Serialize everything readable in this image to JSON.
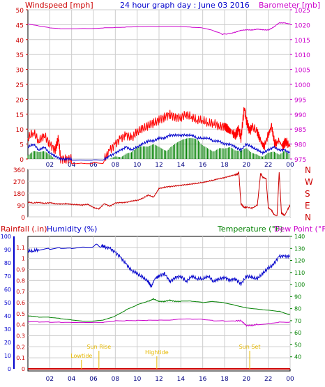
{
  "title": "24 hour graph day : June 03 2016",
  "colors": {
    "wind": "#ff0000",
    "gust": "#ff0000",
    "avgwind": "#0000cc",
    "wind_fill": "#008000",
    "barometer": "#cc00cc",
    "direction": "#cc0000",
    "rain": "#cc0000",
    "humidity": "#0000cc",
    "temperature": "#008000",
    "dewpoint": "#cc00cc",
    "grid": "#cccccc",
    "axis_left": "#cc0000",
    "axis_right_top": "#cc00cc",
    "axis_right_bottom": "#008000",
    "axis_hum": "#0000cc",
    "ann": "#e6b800"
  },
  "chart_data": [
    {
      "type": "line",
      "name": "wind-barometer",
      "xlabel": "",
      "x_ticks": [
        "02",
        "04",
        "06",
        "08",
        "10",
        "12",
        "14",
        "16",
        "18",
        "20",
        "22",
        "00"
      ],
      "left_axis": {
        "label": "Windspeed [mph]",
        "ticks": [
          0,
          5,
          10,
          15,
          20,
          25,
          30,
          35,
          40,
          45,
          50
        ],
        "ylim": [
          0,
          50
        ]
      },
      "right_axis": {
        "label": "Barometer [mb]",
        "ticks": [
          975,
          980,
          985,
          990,
          995,
          1000,
          1005,
          1010,
          1015,
          1020,
          1025
        ],
        "ylim": [
          975,
          1025
        ]
      },
      "series": [
        {
          "key": "barometer",
          "axis": "right",
          "x": [
            0,
            1,
            2,
            3,
            4,
            5,
            6,
            7,
            8,
            9,
            10,
            11,
            12,
            13,
            14,
            15,
            16,
            17,
            17.8,
            18.5,
            19,
            19.5,
            20,
            20.5,
            21,
            21.5,
            22,
            22.5,
            23,
            23.5,
            24
          ],
          "values": [
            1020.2,
            1019.6,
            1019.0,
            1018.7,
            1018.7,
            1018.8,
            1018.8,
            1019.0,
            1019.1,
            1019.2,
            1019.3,
            1019.4,
            1019.3,
            1019.4,
            1019.3,
            1019.1,
            1018.9,
            1018.0,
            1016.8,
            1017.0,
            1017.5,
            1018.1,
            1018.3,
            1018.2,
            1018.5,
            1018.3,
            1018.2,
            1019.2,
            1020.6,
            1020.6,
            1020.2
          ]
        },
        {
          "key": "gust",
          "axis": "left",
          "x": [
            0,
            0.5,
            1,
            1.5,
            2,
            2.5,
            2.8,
            3,
            3.5,
            4,
            5,
            6,
            7,
            7.5,
            8,
            8.5,
            9,
            9.5,
            10,
            10.5,
            11,
            11.5,
            12,
            12.5,
            13,
            13.5,
            14,
            14.5,
            15,
            15.5,
            16,
            16.5,
            17,
            17.5,
            18,
            18.3,
            18.6,
            19,
            19.3,
            19.5,
            19.8,
            20,
            20.3,
            20.5,
            21,
            21.3,
            21.6,
            22,
            22.3,
            22.6,
            23,
            23.3,
            23.6,
            24
          ],
          "values": [
            7,
            9,
            6,
            8,
            5,
            3,
            7,
            0,
            0,
            0,
            0,
            0,
            0,
            3,
            5,
            7,
            8,
            7,
            9,
            10,
            11,
            12,
            13,
            14,
            15,
            14,
            14,
            15,
            14,
            13,
            13,
            12,
            12,
            11,
            11,
            10,
            9,
            8,
            10,
            7,
            17,
            13,
            9,
            11,
            9,
            6,
            4,
            8,
            11,
            5,
            6,
            4,
            6,
            4
          ]
        },
        {
          "key": "avgwind",
          "axis": "left",
          "x": [
            0,
            0.5,
            1,
            1.5,
            2,
            2.5,
            3,
            3.5,
            4,
            5,
            6,
            7,
            7.5,
            8,
            8.5,
            9,
            9.5,
            10,
            10.5,
            11,
            11.5,
            12,
            12.5,
            13,
            13.5,
            14,
            14.5,
            15,
            15.5,
            16,
            16.5,
            17,
            17.5,
            18,
            18.5,
            19,
            19.5,
            20,
            20.5,
            21,
            21.5,
            22,
            22.5,
            23,
            23.5,
            24
          ],
          "values": [
            4,
            5,
            3,
            4,
            2,
            1,
            0,
            0,
            0,
            0,
            0,
            0,
            1,
            2,
            3,
            4,
            3,
            4,
            5,
            6,
            6,
            7,
            7,
            8,
            8,
            8,
            8,
            8,
            7,
            7,
            7,
            6,
            6,
            5,
            5,
            4,
            3,
            5,
            4,
            3,
            2,
            3,
            4,
            3,
            3,
            2
          ]
        },
        {
          "key": "wind_fill",
          "axis": "left",
          "x": [
            0,
            0.5,
            1,
            1.5,
            2,
            2.5,
            3,
            3.5,
            4,
            5,
            6,
            7,
            7.5,
            8,
            8.5,
            9,
            9.5,
            10,
            10.5,
            11,
            11.5,
            12,
            12.5,
            13,
            13.5,
            14,
            14.5,
            15,
            15.5,
            16,
            16.5,
            17,
            17.5,
            18,
            18.5,
            19,
            19.5,
            20,
            20.5,
            21,
            21.5,
            22,
            22.5,
            23,
            23.5,
            24
          ],
          "values": [
            2,
            3,
            2,
            2,
            1,
            0,
            0,
            0,
            0,
            0,
            0,
            0,
            0,
            1,
            1,
            2,
            2,
            3,
            3,
            3,
            4,
            4,
            4,
            5,
            5,
            5,
            5,
            5,
            5,
            4,
            4,
            4,
            4,
            3,
            3,
            2,
            2,
            3,
            2,
            2,
            1,
            2,
            2,
            1,
            2,
            1
          ]
        }
      ]
    },
    {
      "type": "line",
      "name": "wind-direction",
      "left_ticks": [
        0,
        90,
        180,
        270,
        360
      ],
      "right_labels": [
        "N",
        "W",
        "S",
        "E",
        "N"
      ],
      "ylim": [
        0,
        360
      ],
      "x_ticks": [
        "02",
        "04",
        "06",
        "08",
        "10",
        "12",
        "14",
        "16",
        "18",
        "20",
        "22",
        "00"
      ],
      "series": [
        {
          "key": "direction",
          "x": [
            0,
            0.5,
            1,
            1.5,
            2,
            2.5,
            3,
            3.5,
            4,
            4.5,
            5,
            5.5,
            6,
            6.5,
            7,
            7.5,
            8,
            8.5,
            9,
            9.5,
            10,
            10.5,
            11,
            11.5,
            12,
            12.5,
            13,
            13.5,
            14,
            14.5,
            15,
            15.5,
            16,
            16.5,
            17,
            17.5,
            18,
            18.5,
            19,
            19.2,
            19.3,
            19.5,
            19.8,
            20,
            20.5,
            21,
            21.3,
            21.5,
            21.8,
            22,
            22.3,
            22.5,
            22.8,
            23,
            23.2,
            23.5,
            23.8,
            24
          ],
          "values": [
            112,
            105,
            110,
            102,
            108,
            100,
            98,
            100,
            95,
            92,
            90,
            95,
            70,
            60,
            100,
            80,
            105,
            108,
            110,
            120,
            125,
            140,
            165,
            150,
            215,
            225,
            230,
            235,
            240,
            245,
            250,
            255,
            262,
            270,
            280,
            290,
            298,
            310,
            320,
            325,
            340,
            100,
            70,
            75,
            65,
            90,
            330,
            300,
            290,
            70,
            50,
            20,
            5,
            340,
            30,
            10,
            60,
            90
          ]
        }
      ]
    },
    {
      "type": "line",
      "name": "rain-humidity-temperature",
      "left_axis": {
        "label": "Rainfall (.in)",
        "ticks": [
          0,
          0.1,
          0.2,
          0.3,
          0.4,
          0.5,
          0.6,
          0.7,
          0.8,
          0.9,
          1,
          1.1
        ],
        "ylim": [
          0,
          1.2
        ]
      },
      "hum_axis": {
        "label": "Humidity (%)",
        "ticks": [
          0,
          10,
          20,
          30,
          40,
          50,
          60,
          70,
          80,
          90,
          100
        ],
        "ylim": [
          0,
          100
        ]
      },
      "right_axis": {
        "label": "Temperature (°F)",
        "ticks": [
          40,
          50,
          60,
          70,
          80,
          90,
          100,
          110,
          120,
          130,
          140
        ],
        "ylim": [
          30,
          140
        ]
      },
      "dew_label": "Dew Point (°F)",
      "x_ticks": [
        "02",
        "04",
        "06",
        "08",
        "10",
        "12",
        "14",
        "16",
        "18",
        "20",
        "22",
        "00"
      ],
      "series": [
        {
          "key": "humidity",
          "axis": "hum",
          "x": [
            0,
            0.5,
            1,
            2,
            3,
            4,
            5,
            6,
            6.8,
            7,
            7.5,
            8,
            8.5,
            9,
            9.5,
            10,
            10.5,
            11,
            11.3,
            11.6,
            12,
            12.5,
            13,
            13.5,
            14,
            14.5,
            15,
            15.5,
            16,
            16.5,
            17,
            17.5,
            18,
            18.5,
            19,
            19.5,
            20,
            20.5,
            21,
            21.5,
            22,
            22.5,
            23,
            23.5,
            24
          ],
          "values": [
            89,
            89,
            90,
            91,
            92,
            92,
            93,
            93,
            93,
            92,
            91,
            88,
            84,
            79,
            74,
            72,
            69,
            66,
            62,
            68,
            70,
            72,
            66,
            69,
            70,
            66,
            70,
            68,
            68,
            70,
            66,
            68,
            69,
            67,
            68,
            64,
            70,
            69,
            68,
            72,
            76,
            79,
            85,
            85,
            85
          ]
        },
        {
          "key": "temperature",
          "axis": "right",
          "x": [
            0,
            1,
            2,
            3,
            4,
            5,
            6,
            7,
            8,
            9,
            10,
            11,
            11.5,
            12,
            12.5,
            13,
            13.5,
            14,
            15,
            16,
            17,
            18,
            19,
            20,
            21,
            22,
            23,
            24
          ],
          "values": [
            74,
            73,
            73,
            72,
            71,
            70,
            70,
            71,
            74,
            79,
            83,
            86,
            88,
            86,
            86,
            87,
            86,
            86,
            86,
            85,
            86,
            85,
            83,
            81,
            80,
            79,
            78,
            75
          ]
        },
        {
          "key": "dewpoint",
          "axis": "right",
          "x": [
            0,
            1,
            2,
            3,
            4,
            5,
            6,
            7,
            8,
            9,
            10,
            11,
            12,
            13,
            14,
            15,
            16,
            17,
            18,
            19,
            19.5,
            20,
            20.5,
            21,
            22,
            23,
            24
          ],
          "values": [
            69,
            69,
            69,
            69,
            69,
            69,
            69,
            69,
            70,
            70,
            70,
            70,
            70,
            70,
            71,
            71,
            71,
            70,
            70,
            70,
            70,
            66,
            66,
            67,
            68,
            69,
            69
          ]
        },
        {
          "key": "rain",
          "axis": "left",
          "x": [
            0,
            24
          ],
          "values": [
            0,
            0
          ]
        }
      ],
      "annotations": [
        {
          "label": "Lowtide",
          "x": 4.9
        },
        {
          "label": "Sun Rise",
          "x": 6.5
        },
        {
          "label": "Hightide",
          "x": 11.8
        },
        {
          "label": "Sun Set",
          "x": 20.3
        }
      ]
    }
  ]
}
